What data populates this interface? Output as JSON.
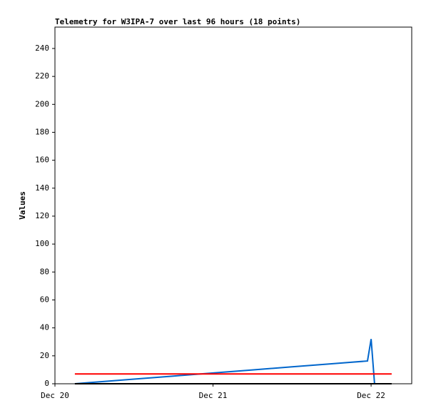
{
  "chart_data": {
    "type": "line",
    "title": "Telemetry for W3IPA-7 over last 96 hours (18 points)",
    "y_label": "Values",
    "xlim": [
      0,
      2.257
    ],
    "xticks": [
      {
        "value": 0,
        "label": "Dec 20"
      },
      {
        "value": 1,
        "label": "Dec 21"
      },
      {
        "value": 2,
        "label": "Dec 22"
      }
    ],
    "ylim": [
      0,
      255.3
    ],
    "yticks": [
      0,
      20,
      40,
      60,
      80,
      100,
      120,
      140,
      160,
      180,
      200,
      220,
      240
    ],
    "series": [
      {
        "color": "#0066cc",
        "x": [
          0.126,
          0.5,
          0.75,
          1.0,
          1.25,
          1.5,
          1.75,
          1.977,
          2.0,
          2.022
        ],
        "values": [
          0,
          3.3,
          5.5,
          7.7,
          9.9,
          12.1,
          14.3,
          16.3,
          32,
          0
        ]
      },
      {
        "color": "#ff0000",
        "x": [
          0.126,
          2.13
        ],
        "values": [
          7,
          7
        ]
      },
      {
        "color": "#000000",
        "x": [
          0.126,
          2.13
        ],
        "values": [
          0,
          0
        ]
      }
    ]
  }
}
